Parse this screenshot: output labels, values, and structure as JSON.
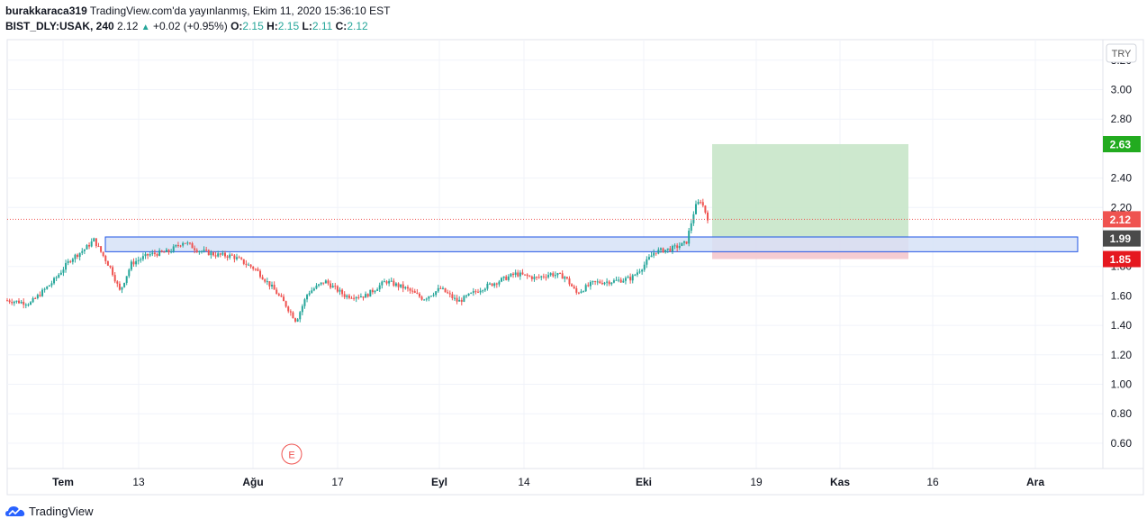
{
  "header": {
    "author": "burakkaraca319",
    "published": "TradingView.com'da yayınlanmış, Ekim 11, 2020 15:36:10 EST",
    "symbol": "BIST_DLY:USAK, 240",
    "last": "2.12",
    "change": "+0.02 (+0.95%)",
    "o_label": "O:",
    "o_value": "2.15",
    "h_label": "H:",
    "h_value": "2.15",
    "l_label": "L:",
    "l_value": "2.11",
    "c_label": "C:",
    "c_value": "2.12"
  },
  "currency": "TRY",
  "footer": {
    "brand": "TradingView"
  },
  "colors": {
    "up": "#26a69a",
    "down": "#ef5350",
    "zone_fill": "#d6e2f7",
    "zone_stroke": "#1e53e5",
    "target_fill": "#c8e6c9",
    "stop_fill": "#f4c7cd",
    "grid": "#f0f3fa"
  },
  "chart_data": {
    "type": "candlestick",
    "ylim": [
      0.4,
      3.3
    ],
    "y_ticks": [
      "3.20",
      "3.00",
      "2.80",
      "2.40",
      "2.20",
      "1.80",
      "1.60",
      "1.40",
      "1.20",
      "1.00",
      "0.80",
      "0.60"
    ],
    "x_ticks": [
      "Tem",
      "13",
      "Ağu",
      "17",
      "Eyl",
      "14",
      "Eki",
      "19",
      "Kas",
      "16",
      "Ara"
    ],
    "price_labels": [
      {
        "value": 2.63,
        "text": "2.63",
        "color": "#22ab1f"
      },
      {
        "value": 2.12,
        "text": "2.12",
        "color": "#ef5350"
      },
      {
        "value": 1.99,
        "text": "1.99",
        "color": "#4a4a4a"
      },
      {
        "value": 1.85,
        "text": "1.85",
        "color": "#e5181f"
      }
    ],
    "last_price": 2.12,
    "support_zone": {
      "top": 2.0,
      "bottom": 1.9
    },
    "position": {
      "entry": 1.99,
      "target": 2.63,
      "stop": 1.85
    },
    "event_marker": "E",
    "path": [
      [
        0,
        1.57
      ],
      [
        0.04,
        1.55
      ],
      [
        0.08,
        1.7
      ],
      [
        0.11,
        1.85
      ],
      [
        0.135,
        1.92
      ],
      [
        0.15,
        1.98
      ],
      [
        0.165,
        1.88
      ],
      [
        0.18,
        1.78
      ],
      [
        0.195,
        1.63
      ],
      [
        0.215,
        1.82
      ],
      [
        0.245,
        1.88
      ],
      [
        0.28,
        1.9
      ],
      [
        0.305,
        1.97
      ],
      [
        0.33,
        1.91
      ],
      [
        0.36,
        1.88
      ],
      [
        0.39,
        1.87
      ],
      [
        0.43,
        1.78
      ],
      [
        0.46,
        1.65
      ],
      [
        0.48,
        1.55
      ],
      [
        0.5,
        1.43
      ],
      [
        0.52,
        1.62
      ],
      [
        0.55,
        1.7
      ],
      [
        0.585,
        1.6
      ],
      [
        0.62,
        1.6
      ],
      [
        0.655,
        1.7
      ],
      [
        0.69,
        1.65
      ],
      [
        0.72,
        1.58
      ],
      [
        0.75,
        1.65
      ],
      [
        0.78,
        1.56
      ],
      [
        0.82,
        1.65
      ],
      [
        0.85,
        1.7
      ],
      [
        0.88,
        1.75
      ],
      [
        0.915,
        1.72
      ],
      [
        0.94,
        1.75
      ],
      [
        0.965,
        1.73
      ],
      [
        0.985,
        1.62
      ],
      [
        1.015,
        1.69
      ],
      [
        1.05,
        1.7
      ],
      [
        1.08,
        1.72
      ],
      [
        1.1,
        1.8
      ],
      [
        1.12,
        1.9
      ],
      [
        1.15,
        1.92
      ],
      [
        1.175,
        1.96
      ],
      [
        1.19,
        2.2
      ],
      [
        1.2,
        2.25
      ],
      [
        1.212,
        2.13
      ]
    ]
  }
}
